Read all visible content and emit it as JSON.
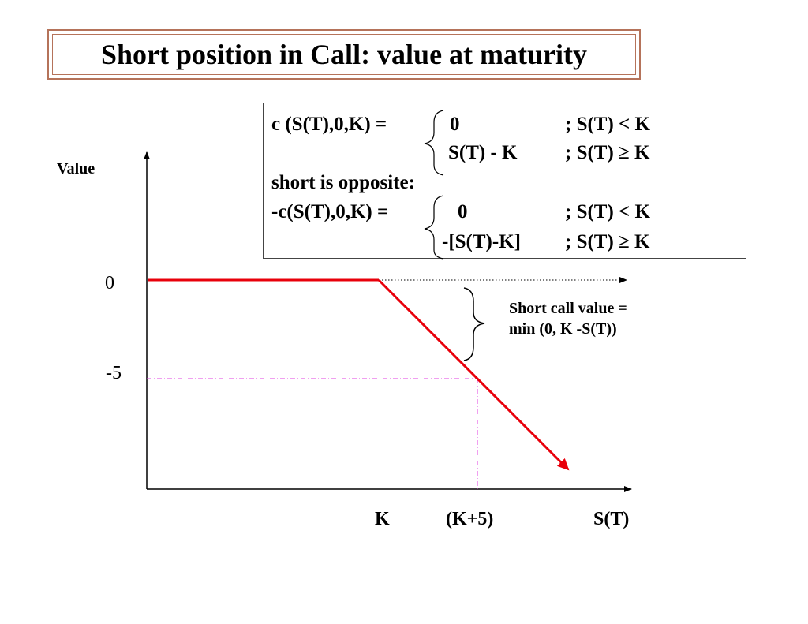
{
  "title": "Short position in Call: value at maturity",
  "formula": {
    "line1_lhs": "c (S(T),0,K)  =",
    "line1_val": "0",
    "line1_cond": ";  S(T) < K",
    "line2_val": "S(T) - K",
    "line2_cond": ";  S(T) ≥ K",
    "short_label": "short is opposite",
    "short_colon": ":",
    "line4_lhs": "-c(S(T),0,K) =",
    "line4_val": "0",
    "line4_cond": ";  S(T) < K",
    "line5_val": "-[S(T)-K]",
    "line5_cond": ";  S(T)  ≥  K"
  },
  "annotation": {
    "line1": "Short call value =",
    "line2": "min (0, K -S(T))"
  },
  "colors": {
    "payoff": "#e8000b",
    "guide": "#e040e0",
    "title_border": "#b5735a"
  },
  "chart_data": {
    "type": "line",
    "title": "",
    "ylabel": "Value",
    "xlabel": "S(T)",
    "x_ticks": [
      "K",
      "(K+5)"
    ],
    "y_ticks": [
      "0",
      "-5"
    ],
    "series": [
      {
        "points": [
          {
            "x": "0",
            "y": 0
          },
          {
            "x": "K",
            "y": 0
          },
          {
            "x": "K+5",
            "y": -5
          }
        ]
      }
    ]
  }
}
